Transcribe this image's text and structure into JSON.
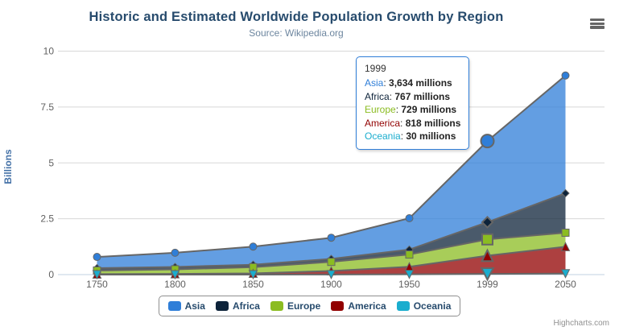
{
  "chart_data": {
    "type": "area",
    "stacking": "normal",
    "title": "Historic and Estimated Worldwide Population Growth by Region",
    "subtitle": "Source: Wikipedia.org",
    "ylabel": "Billions",
    "xlabel": "",
    "units": "millions",
    "categories": [
      "1750",
      "1800",
      "1850",
      "1900",
      "1950",
      "1999",
      "2050"
    ],
    "y_ticks": [
      "0",
      "2.5",
      "5",
      "7.5",
      "10"
    ],
    "ylim": [
      0,
      10
    ],
    "grid": true,
    "legend_position": "bottom",
    "hover_index": 5,
    "series": [
      {
        "name": "Asia",
        "color": "#2f7ed8",
        "marker": "circle",
        "values": [
          502,
          635,
          809,
          947,
          1402,
          3634,
          5268
        ]
      },
      {
        "name": "Africa",
        "color": "#0d233a",
        "marker": "diamond",
        "values": [
          106,
          107,
          111,
          133,
          221,
          767,
          1766
        ]
      },
      {
        "name": "Europe",
        "color": "#8bbc21",
        "marker": "square",
        "values": [
          163,
          203,
          276,
          408,
          547,
          729,
          628
        ]
      },
      {
        "name": "America",
        "color": "#910000",
        "marker": "triangle",
        "values": [
          18,
          31,
          54,
          156,
          339,
          818,
          1201
        ]
      },
      {
        "name": "Oceania",
        "color": "#1aadce",
        "marker": "triangle-down",
        "values": [
          2,
          2,
          2,
          6,
          13,
          30,
          46
        ]
      }
    ],
    "fill_opacity": 0.75,
    "line_color": "#666666",
    "grid_color": "#d8d8d8",
    "axis_line_color": "#c0d0e0"
  },
  "tooltip": {
    "header": "1999",
    "rows": [
      {
        "name": "Asia",
        "color": "#2f7ed8",
        "value": "3,634 millions"
      },
      {
        "name": "Africa",
        "color": "#0d233a",
        "value": "767 millions"
      },
      {
        "name": "Europe",
        "color": "#8bbc21",
        "value": "729 millions"
      },
      {
        "name": "America",
        "color": "#910000",
        "value": "818 millions"
      },
      {
        "name": "Oceania",
        "color": "#1aadce",
        "value": "30 millions"
      }
    ]
  },
  "credits": "Highcharts.com",
  "icons": {
    "export_menu": "hamburger-icon"
  }
}
